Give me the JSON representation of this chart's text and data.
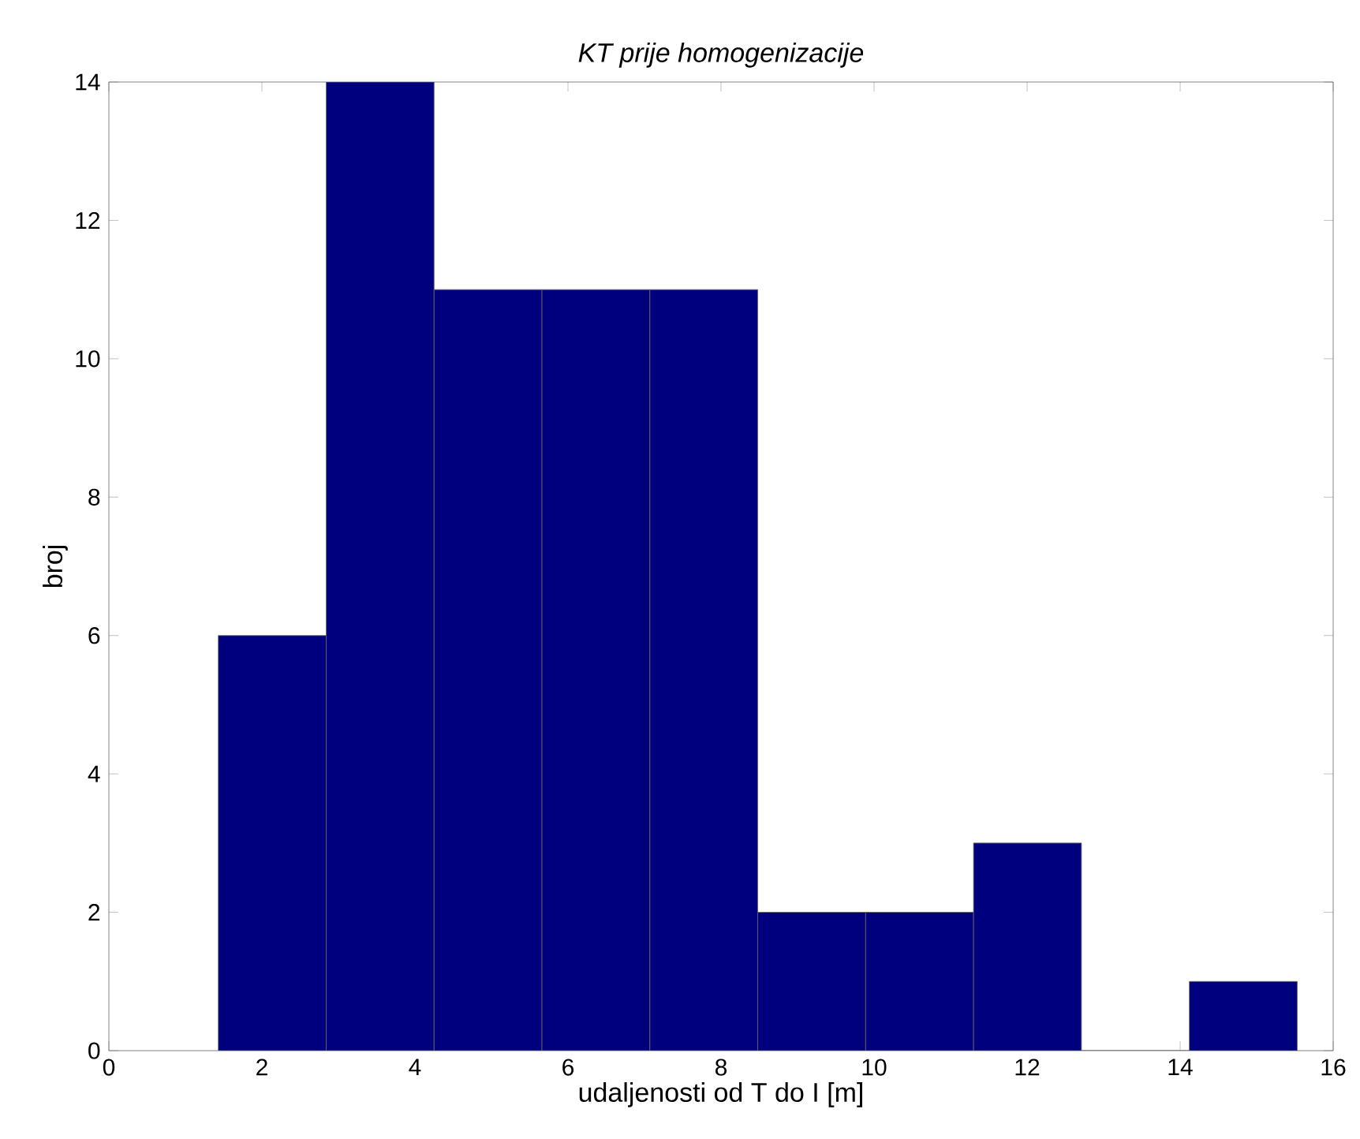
{
  "chart_data": {
    "type": "histogram",
    "title": "*KT prije homogenizacije*",
    "xlabel": "udaljenosti od T do I [m]",
    "ylabel": "broj",
    "bins": [
      1.43,
      2.84,
      4.25,
      5.66,
      7.07,
      8.48,
      9.89,
      11.3,
      12.71,
      14.12,
      15.53
    ],
    "values": [
      6,
      14,
      11,
      11,
      11,
      2,
      2,
      3,
      0,
      1
    ],
    "color": "#00007f",
    "xlim": [
      0,
      16
    ],
    "ylim": [
      0,
      14
    ],
    "xticks": [
      0,
      2,
      4,
      6,
      8,
      10,
      12,
      14,
      16
    ],
    "yticks": [
      0,
      2,
      4,
      6,
      8,
      10,
      12,
      14
    ],
    "grid": false
  }
}
